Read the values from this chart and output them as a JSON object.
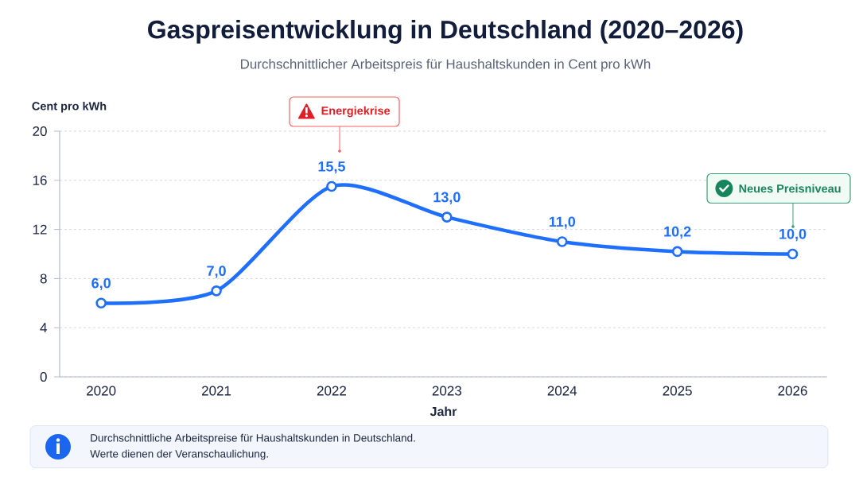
{
  "chart_data": {
    "type": "line",
    "title": "Gaspreisentwicklung in Deutschland (2020–2026)",
    "subtitle": "Durchschnittlicher Arbeitspreis für Haushaltskunden in Cent pro kWh",
    "xlabel": "Jahr",
    "ylabel": "Cent pro kWh",
    "categories": [
      "2020",
      "2021",
      "2022",
      "2023",
      "2024",
      "2025",
      "2026"
    ],
    "values": [
      6.0,
      7.0,
      15.5,
      13.0,
      11.0,
      10.2,
      10.0
    ],
    "color": "#1f6fff",
    "value_labels": [
      "6,0",
      "7,0",
      "15,5",
      "13,0",
      "11,0",
      "10,2",
      "10,0"
    ],
    "ylim": [
      0,
      20
    ],
    "yticks": [
      0,
      4,
      8,
      12,
      16,
      20
    ],
    "grid": "y",
    "marker": "circle",
    "line_style": "solid",
    "annotations": [
      "Energiekrise",
      "Neues Preisniveau",
      "Durchschnittliche Arbeitspreise für Haushaltskunden in Deutschland.",
      "Werte dienen der Veranschaulichung."
    ]
  }
}
